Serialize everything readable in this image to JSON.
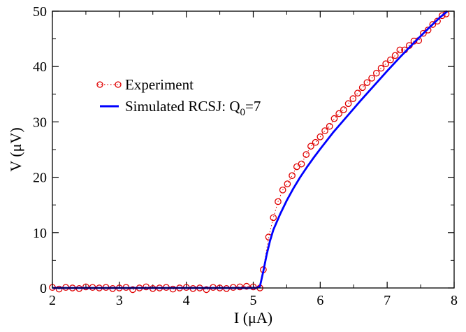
{
  "chart_data": {
    "type": "line",
    "title": "",
    "xlabel": "I (μA)",
    "ylabel": "V (μV)",
    "xlim": [
      2,
      8
    ],
    "ylim": [
      0,
      50
    ],
    "x_ticks": [
      2,
      3,
      4,
      5,
      6,
      7,
      8
    ],
    "y_ticks": [
      0,
      10,
      20,
      30,
      40,
      50
    ],
    "grid": false,
    "legend_position": "top-left",
    "series": [
      {
        "name": "Experiment",
        "style": "scatter-dotted",
        "marker": "open-circle",
        "color": "#e00000",
        "x": [
          2.0,
          2.1,
          2.2,
          2.3,
          2.4,
          2.5,
          2.6,
          2.7,
          2.8,
          2.9,
          3.0,
          3.1,
          3.2,
          3.3,
          3.4,
          3.5,
          3.6,
          3.7,
          3.8,
          3.9,
          4.0,
          4.1,
          4.2,
          4.3,
          4.4,
          4.5,
          4.6,
          4.7,
          4.8,
          4.9,
          5.0,
          5.1,
          5.15,
          5.23,
          5.3,
          5.37,
          5.44,
          5.51,
          5.58,
          5.65,
          5.72,
          5.79,
          5.86,
          5.93,
          6.0,
          6.07,
          6.14,
          6.21,
          6.28,
          6.35,
          6.42,
          6.49,
          6.56,
          6.63,
          6.7,
          6.77,
          6.84,
          6.91,
          6.98,
          7.05,
          7.12,
          7.19,
          7.26,
          7.33,
          7.4,
          7.47,
          7.54,
          7.61,
          7.68,
          7.75,
          7.82,
          7.88
        ],
        "y": [
          0.1,
          -0.2,
          0.1,
          0.0,
          -0.1,
          0.2,
          0.1,
          0.0,
          0.1,
          -0.1,
          0.0,
          0.1,
          -0.3,
          0.0,
          0.2,
          -0.1,
          0.0,
          0.1,
          -0.2,
          0.0,
          0.1,
          -0.1,
          0.0,
          -0.3,
          0.1,
          0.0,
          -0.1,
          0.1,
          0.2,
          0.3,
          0.2,
          0.0,
          3.3,
          9.2,
          12.7,
          15.6,
          17.7,
          18.8,
          20.3,
          21.9,
          22.4,
          24.1,
          25.6,
          26.3,
          27.3,
          28.4,
          29.2,
          30.6,
          31.5,
          32.2,
          33.3,
          34.2,
          35.2,
          36.2,
          37.1,
          37.9,
          38.8,
          39.7,
          40.5,
          41.2,
          42.0,
          43.0,
          43.0,
          43.8,
          44.6,
          44.7,
          46.0,
          46.6,
          47.6,
          48.2,
          49.2,
          49.5
        ]
      },
      {
        "name": "Simulated RCSJ: Q0=7",
        "style": "line",
        "color": "#0000ff",
        "x": [
          2.0,
          2.5,
          3.0,
          3.5,
          4.0,
          4.5,
          5.0,
          5.05,
          5.1,
          5.15,
          5.2,
          5.25,
          5.3,
          5.4,
          5.5,
          5.6,
          5.7,
          5.8,
          5.9,
          6.0,
          6.2,
          6.4,
          6.6,
          6.8,
          7.0,
          7.2,
          7.4,
          7.6,
          7.8,
          7.9
        ],
        "y": [
          0.0,
          0.0,
          0.0,
          0.0,
          0.0,
          0.0,
          0.0,
          0.0,
          0.3,
          3.0,
          6.0,
          8.5,
          10.5,
          13.3,
          15.8,
          18.0,
          20.0,
          21.8,
          23.5,
          25.1,
          28.2,
          31.0,
          33.8,
          36.5,
          39.2,
          41.8,
          44.3,
          46.7,
          49.0,
          50.0
        ]
      }
    ],
    "legend": {
      "experiment_label": "Experiment",
      "simulated_label_main": "Simulated RCSJ: Q",
      "simulated_label_sub": "0",
      "simulated_label_tail": "=7"
    }
  },
  "colors": {
    "experiment": "#e00000",
    "simulation": "#0000ff",
    "axes": "#000000"
  }
}
